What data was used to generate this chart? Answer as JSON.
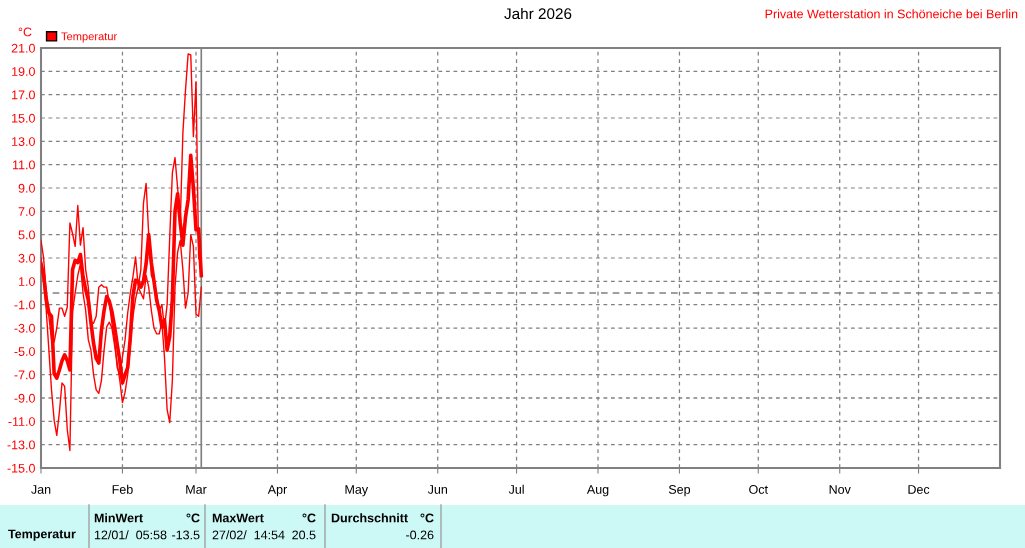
{
  "chart_data": {
    "type": "line",
    "title": "Jahr 2026",
    "ylabel": "°C",
    "annotations": [
      "Private Wetterstation in Schöneiche bei Berlin",
      "Temperatur",
      "MinWert",
      "°C",
      "12/01/  05:58",
      "-13.5",
      "MaxWert",
      "°C",
      "27/02/  14:54",
      "20.5",
      "Durchschnitt",
      "°C",
      "-0.26"
    ],
    "x": [
      "2026-01-01",
      "2026-01-02",
      "2026-01-03",
      "2026-01-04",
      "2026-01-05",
      "2026-01-06",
      "2026-01-07",
      "2026-01-08",
      "2026-01-09",
      "2026-01-10",
      "2026-01-11",
      "2026-01-12",
      "2026-01-13",
      "2026-01-14",
      "2026-01-15",
      "2026-01-16",
      "2026-01-17",
      "2026-01-18",
      "2026-01-19",
      "2026-01-20",
      "2026-01-21",
      "2026-01-22",
      "2026-01-23",
      "2026-01-24",
      "2026-01-25",
      "2026-01-26",
      "2026-01-27",
      "2026-01-28",
      "2026-01-29",
      "2026-01-30",
      "2026-01-31",
      "2026-02-01",
      "2026-02-02",
      "2026-02-03",
      "2026-02-04",
      "2026-02-05",
      "2026-02-06",
      "2026-02-07",
      "2026-02-08",
      "2026-02-09",
      "2026-02-10",
      "2026-02-11",
      "2026-02-12",
      "2026-02-13",
      "2026-02-14",
      "2026-02-15",
      "2026-02-16",
      "2026-02-17",
      "2026-02-18",
      "2026-02-19",
      "2026-02-20",
      "2026-02-21",
      "2026-02-22",
      "2026-02-23",
      "2026-02-24",
      "2026-02-25",
      "2026-02-26",
      "2026-02-27",
      "2026-02-28",
      "2026-03-01",
      "2026-03-02",
      "2026-03-03"
    ],
    "series": [
      {
        "color": "#ff0000",
        "values": [
          4.5,
          3.0,
          0.0,
          -2.0,
          -4.0,
          -4.2,
          -3.0,
          -1.3,
          -1.3,
          -2.0,
          -1.2,
          6.0,
          5.1,
          4.0,
          7.5,
          4.1,
          5.6,
          2.0,
          0.5,
          -2.5,
          -2.6,
          -2.0,
          0.5,
          0.7,
          0.5,
          0.5,
          -0.9,
          -2.6,
          -4.0,
          -6.4,
          -7.0,
          -5.5,
          -4.0,
          -1.7,
          0.0,
          1.4,
          3.1,
          0.5,
          2.0,
          7.7,
          9.4,
          5.0,
          1.5,
          1.0,
          0.0,
          -1.5,
          -1.0,
          -3.0,
          -1.0,
          4.8,
          10.3,
          11.6,
          9.0,
          6.0,
          13.7,
          17.4,
          20.5,
          20.4,
          13.4,
          18.1,
          3.0,
          2.5
        ]
      },
      {
        "name": "Temperatur",
        "color": "#ff0000",
        "values": [
          2.5,
          1.5,
          -0.5,
          -1.7,
          -2.0,
          -6.9,
          -7.3,
          -6.6,
          -5.8,
          -5.3,
          -5.8,
          -6.6,
          2.0,
          2.8,
          2.6,
          3.3,
          1.4,
          0.3,
          -0.6,
          -2.5,
          -4.3,
          -5.6,
          -6.0,
          -3.2,
          -1.5,
          -0.3,
          -0.7,
          -1.6,
          -2.9,
          -4.4,
          -5.8,
          -7.7,
          -7.0,
          -6.4,
          -3.8,
          -0.2,
          1.1,
          1.0,
          0.5,
          1.0,
          2.5,
          5.0,
          2.6,
          1.0,
          -0.6,
          -1.5,
          -2.9,
          -2.3,
          -4.9,
          -3.7,
          -0.5,
          7.0,
          8.5,
          6.0,
          4.1,
          6.5,
          8.0,
          11.8,
          9.0,
          5.4,
          5.5,
          1.5
        ]
      },
      {
        "color": "#ff0000",
        "values": [
          3.0,
          1.0,
          -1.5,
          -4.9,
          -8.3,
          -10.9,
          -12.2,
          -10.2,
          -7.7,
          -8.0,
          -11.7,
          -13.5,
          -1.6,
          0.0,
          1.5,
          2.5,
          0.0,
          -1.5,
          -4.0,
          -4.9,
          -7.0,
          -8.3,
          -8.6,
          -7.5,
          -4.9,
          -2.9,
          -2.5,
          -3.0,
          -4.5,
          -6.0,
          -7.5,
          -9.4,
          -8.5,
          -7.0,
          -4.5,
          -2.0,
          -0.5,
          0.5,
          0.0,
          -0.5,
          1.5,
          0.5,
          -1.5,
          -3.0,
          -3.5,
          -3.5,
          -2.5,
          -5.5,
          -10.0,
          -11.1,
          -7.5,
          0.5,
          3.5,
          4.5,
          2.0,
          -1.3,
          0.0,
          5.0,
          4.0,
          -1.8,
          -2.0,
          0.5
        ]
      }
    ],
    "xlim": [
      "2026-01-01",
      "2027-01-01"
    ],
    "xticks": [
      {
        "value": "2026-01-01",
        "label": "Jan"
      },
      {
        "value": "2026-02-01",
        "label": "Feb"
      },
      {
        "value": "2026-03-01",
        "label": "Mar"
      },
      {
        "value": "2026-04-01",
        "label": "Apr"
      },
      {
        "value": "2026-05-01",
        "label": "May"
      },
      {
        "value": "2026-06-01",
        "label": "Jun"
      },
      {
        "value": "2026-07-01",
        "label": "Jul"
      },
      {
        "value": "2026-08-01",
        "label": "Aug"
      },
      {
        "value": "2026-09-01",
        "label": "Sep"
      },
      {
        "value": "2026-10-01",
        "label": "Oct"
      },
      {
        "value": "2026-11-01",
        "label": "Nov"
      },
      {
        "value": "2026-12-01",
        "label": "Dec"
      }
    ],
    "ylim": [
      -15,
      21
    ],
    "yticks": [
      {
        "value": -15,
        "label": "-15.0"
      },
      {
        "value": -13,
        "label": "-13.0"
      },
      {
        "value": -11,
        "label": "-11.0"
      },
      {
        "value": -9,
        "label": "-9.0"
      },
      {
        "value": -7,
        "label": "-7.0"
      },
      {
        "value": -5,
        "label": "-5.0"
      },
      {
        "value": -3,
        "label": "-3.0"
      },
      {
        "value": -1,
        "label": "-1.0"
      },
      {
        "value": 1,
        "label": "1.0"
      },
      {
        "value": 3,
        "label": "3.0"
      },
      {
        "value": 5,
        "label": "5.0"
      },
      {
        "value": 7,
        "label": "7.0"
      },
      {
        "value": 9,
        "label": "9.0"
      },
      {
        "value": 11,
        "label": "11.0"
      },
      {
        "value": 13,
        "label": "13.0"
      },
      {
        "value": 15,
        "label": "15.0"
      },
      {
        "value": 17,
        "label": "17.0"
      },
      {
        "value": 19,
        "label": "19.0"
      },
      {
        "value": 21,
        "label": "21.0"
      }
    ],
    "ref_lines": [
      {
        "axis": "y",
        "value": 0,
        "color": "#808080",
        "line_style": "dashed"
      },
      {
        "axis": "x",
        "value": "2026-03-03",
        "color": "#808080",
        "line_style": "solid"
      }
    ],
    "grid": true,
    "legend": "top left",
    "marker": "none",
    "line_style": "solid"
  }
}
